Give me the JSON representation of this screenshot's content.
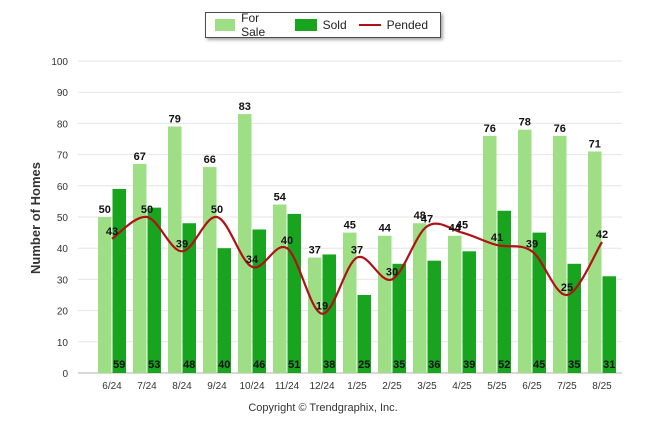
{
  "legend": {
    "for_sale": "For Sale",
    "sold": "Sold",
    "pended": "Pended"
  },
  "copyright": "Copyright © Trendgraphix, Inc.",
  "colors": {
    "for_sale": "#9edf86",
    "sold": "#18a41e",
    "pended": "#b01116"
  },
  "chart_data": {
    "type": "bar",
    "ylabel": "Number of Homes",
    "xlabel": "",
    "ylim": [
      0,
      100
    ],
    "yticks": [
      0,
      10,
      20,
      30,
      40,
      50,
      60,
      70,
      80,
      90,
      100
    ],
    "grid": true,
    "legend_position": "top-center",
    "categories": [
      "6/24",
      "7/24",
      "8/24",
      "9/24",
      "10/24",
      "11/24",
      "12/24",
      "1/25",
      "2/25",
      "3/25",
      "4/25",
      "5/25",
      "6/25",
      "7/25",
      "8/25"
    ],
    "series": [
      {
        "name": "For Sale",
        "type": "bar",
        "values": [
          50,
          67,
          79,
          66,
          83,
          54,
          37,
          45,
          44,
          48,
          44,
          76,
          78,
          76,
          71
        ]
      },
      {
        "name": "Sold",
        "type": "bar",
        "values": [
          59,
          53,
          48,
          40,
          46,
          51,
          38,
          25,
          35,
          36,
          39,
          52,
          45,
          35,
          31
        ]
      },
      {
        "name": "Pended",
        "type": "line",
        "values": [
          43,
          50,
          39,
          50,
          34,
          40,
          19,
          37,
          30,
          47,
          45,
          41,
          39,
          25,
          42
        ]
      }
    ]
  }
}
